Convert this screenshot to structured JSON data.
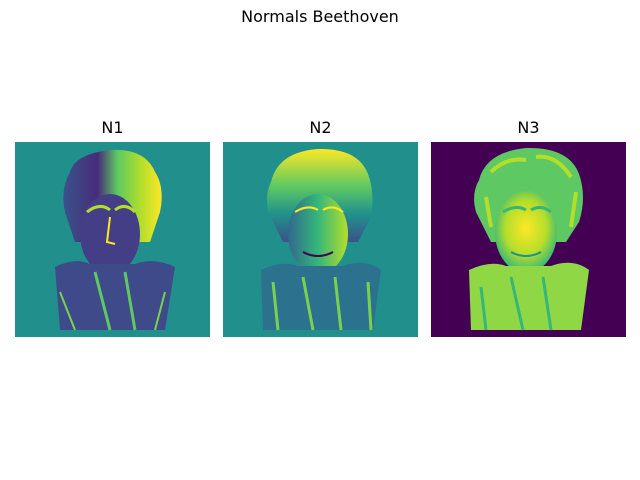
{
  "figure": {
    "title": "Normals Beethoven",
    "colormap": "viridis"
  },
  "panels": [
    {
      "title": "N1",
      "background": "#21908d",
      "subject": "beethoven-bust-normal-x"
    },
    {
      "title": "N2",
      "background": "#21908d",
      "subject": "beethoven-bust-normal-y"
    },
    {
      "title": "N3",
      "background": "#440154",
      "subject": "beethoven-bust-normal-z"
    }
  ]
}
